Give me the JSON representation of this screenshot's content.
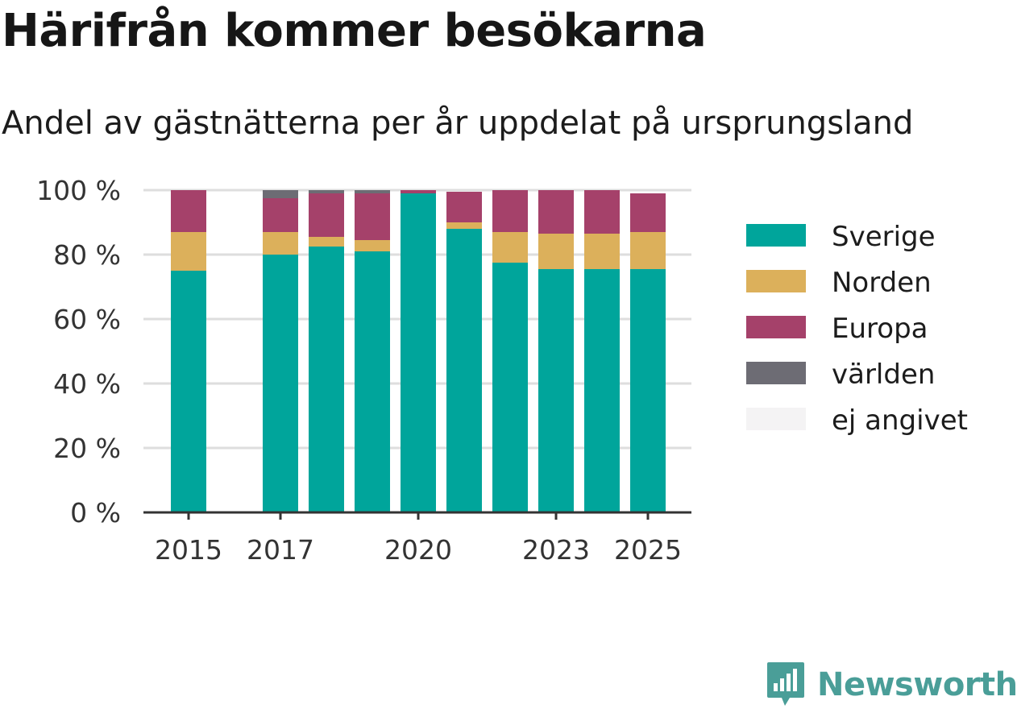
{
  "title": "Härifrån kommer besökarna",
  "subtitle": "Andel av gästnätterna per år uppdelat på ursprungsland",
  "logo_text": "Newsworthy",
  "chart_data": {
    "type": "bar",
    "stacked": true,
    "categories": [
      "2015",
      "2016",
      "2017",
      "2018",
      "2019",
      "2020",
      "2021",
      "2022",
      "2023",
      "2024",
      "2025"
    ],
    "x_tick_labels": [
      "2015",
      "2017",
      "2020",
      "2023",
      "2025"
    ],
    "y_tick_labels": [
      "0 %",
      "20 %",
      "40 %",
      "60 %",
      "80 %",
      "100 %"
    ],
    "ylim": [
      0,
      100
    ],
    "grid": "horizontal",
    "legend_position": "right",
    "series": [
      {
        "name": "Sverige",
        "color": "#00a59b",
        "values": [
          75,
          null,
          80,
          82.5,
          81,
          99,
          88,
          77.5,
          75.5,
          75.5,
          75.5
        ]
      },
      {
        "name": "Norden",
        "color": "#dcb05b",
        "values": [
          12,
          null,
          7,
          3,
          3.5,
          0,
          2,
          9.5,
          11,
          11,
          11.5
        ]
      },
      {
        "name": "Europa",
        "color": "#a5416a",
        "values": [
          13,
          null,
          10.5,
          13.5,
          14.5,
          1,
          9.5,
          13,
          13.5,
          13.5,
          12
        ]
      },
      {
        "name": "världen",
        "color": "#6d6c74",
        "values": [
          0,
          null,
          2.5,
          1,
          1,
          0,
          0,
          0,
          0,
          0,
          0
        ]
      },
      {
        "name": "ej angivet",
        "color": "#f4f3f4",
        "values": [
          0,
          null,
          0,
          0,
          0,
          0,
          0,
          0,
          0,
          0,
          0
        ]
      }
    ]
  }
}
